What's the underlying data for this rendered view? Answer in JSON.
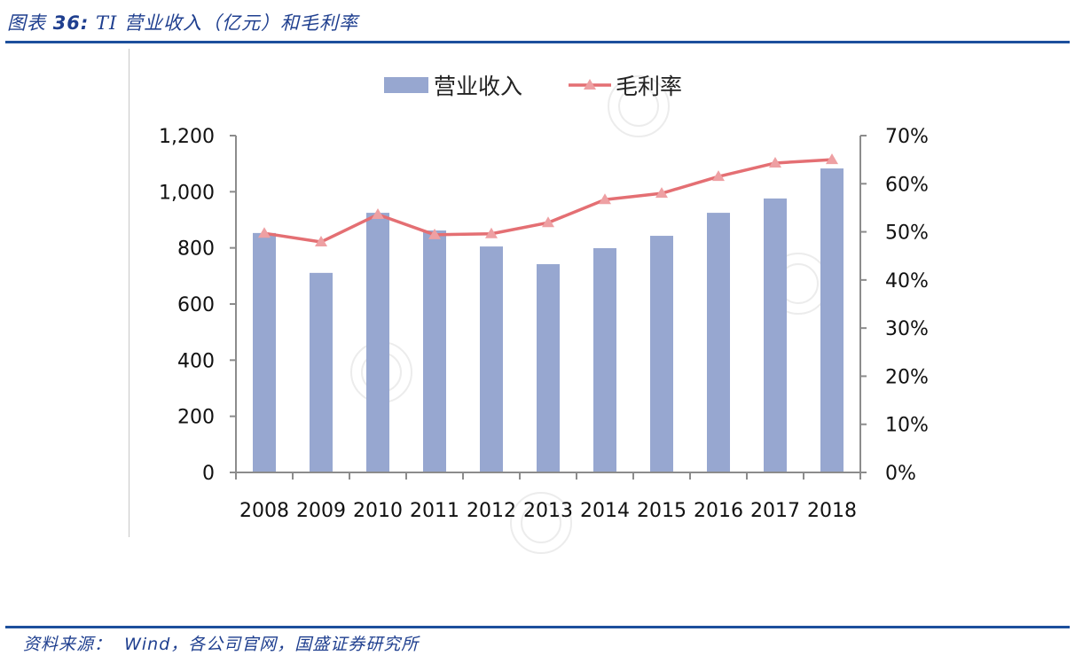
{
  "header": {
    "figure_label": "图表 ",
    "figure_number": "36:",
    "title": " TI 营业收入（亿元）和毛利率"
  },
  "footer": {
    "source_label": "资料来源：",
    "source_main": "Wind",
    "source_rest": "，各公司官网，国盛证券研究所"
  },
  "colors": {
    "bar": "#97a7d0",
    "line": "#e46f73",
    "marker": "#eea0a3",
    "axis": "#8c8c8c",
    "rule": "#1d4f9c",
    "title_text": "#1f3f8f"
  },
  "chart_data": {
    "type": "bar+line",
    "title": "TI 营业收入（亿元）和毛利率",
    "categories": [
      "2008",
      "2009",
      "2010",
      "2011",
      "2012",
      "2013",
      "2014",
      "2015",
      "2016",
      "2017",
      "2018"
    ],
    "series": [
      {
        "name": "营业收入",
        "type": "bar",
        "axis": "left",
        "values": [
          853,
          711,
          925,
          862,
          805,
          742,
          799,
          843,
          925,
          976,
          1083
        ]
      },
      {
        "name": "毛利率",
        "type": "line",
        "axis": "right",
        "marker": "triangle",
        "values": [
          49.7,
          47.9,
          53.6,
          49.4,
          49.6,
          51.9,
          56.7,
          58.0,
          61.5,
          64.3,
          65.0
        ]
      }
    ],
    "left_axis": {
      "ylim": [
        0,
        1200
      ],
      "ticks": [
        0,
        200,
        400,
        600,
        800,
        1000,
        1200
      ],
      "tick_labels": [
        "0",
        "200",
        "400",
        "600",
        "800",
        "1,000",
        "1,200"
      ]
    },
    "right_axis": {
      "ylim": [
        0,
        70
      ],
      "ticks": [
        0,
        10,
        20,
        30,
        40,
        50,
        60,
        70
      ],
      "tick_labels": [
        "0%",
        "10%",
        "20%",
        "30%",
        "40%",
        "50%",
        "60%",
        "70%"
      ]
    },
    "xlabel": "",
    "ylabel": "",
    "grid": false,
    "legend": {
      "position": "top",
      "entries": [
        "营业收入",
        "毛利率"
      ]
    }
  }
}
